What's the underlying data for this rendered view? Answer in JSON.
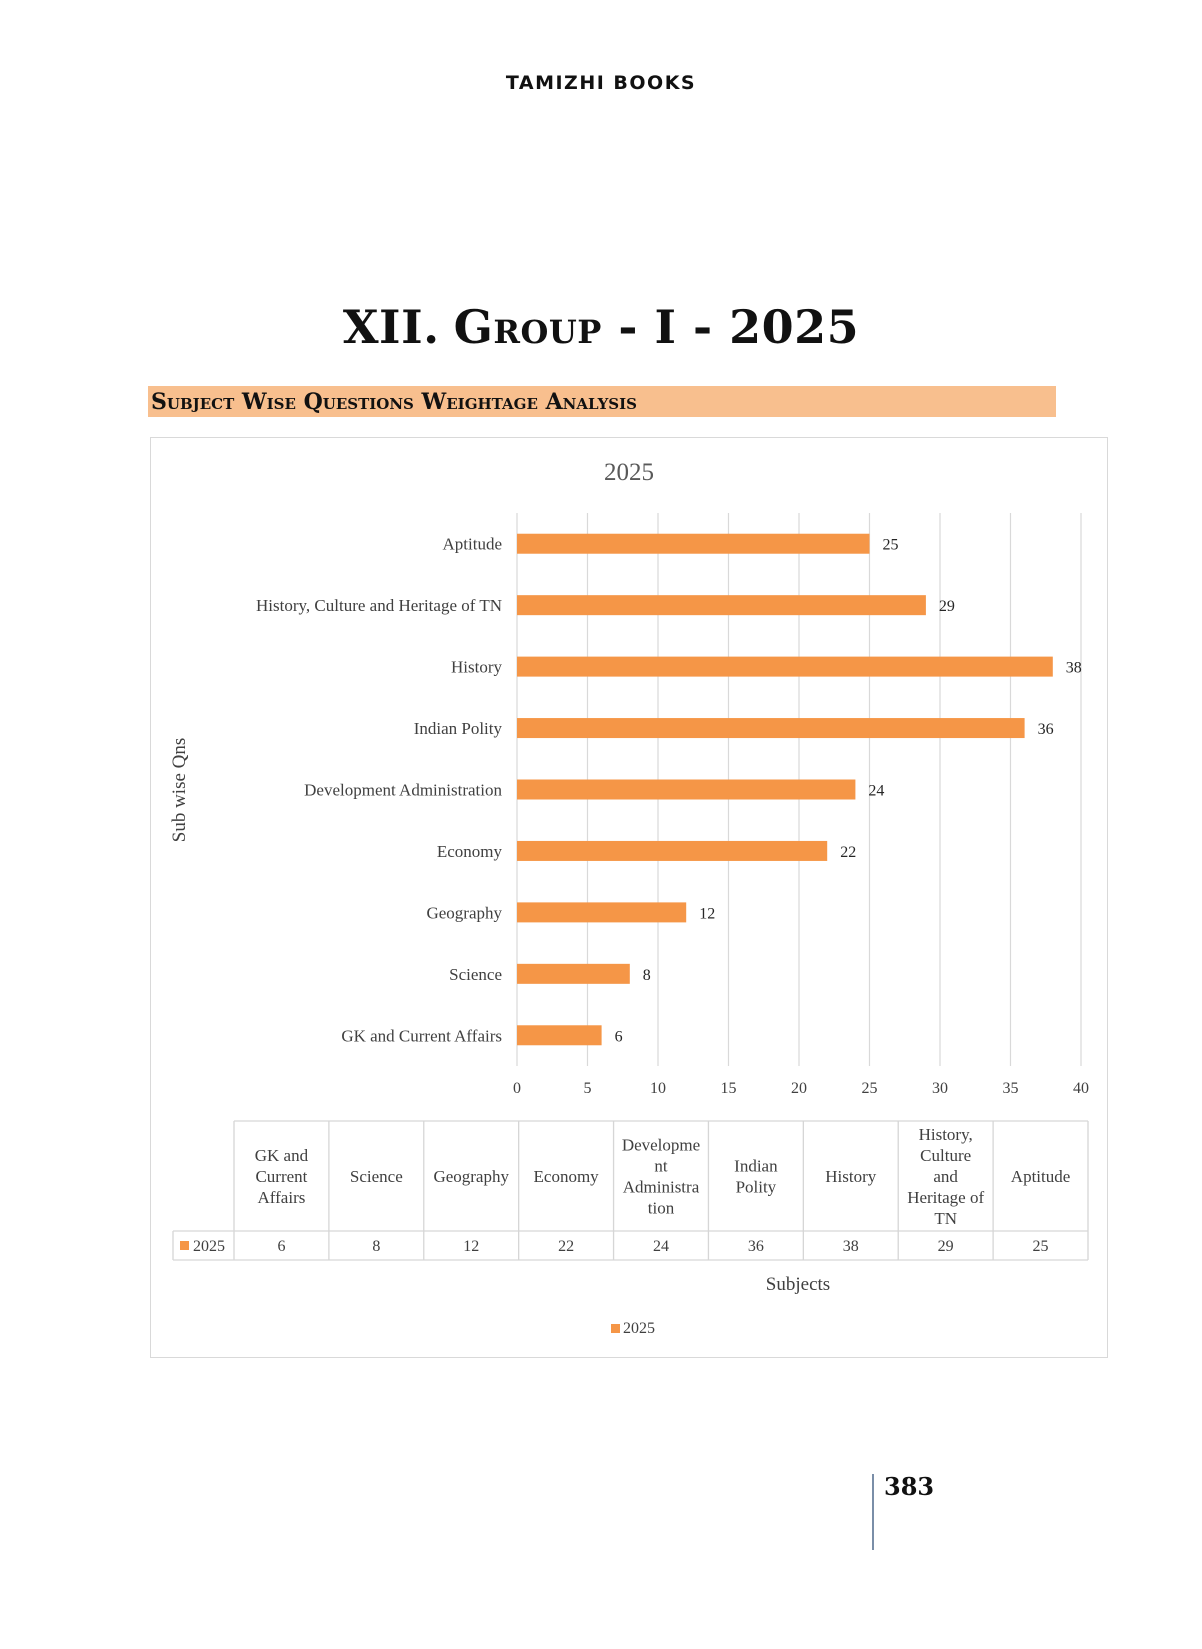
{
  "header": {
    "brand": "TAMIZHI BOOKS"
  },
  "page_title": {
    "numeral": "XII.",
    "text": "Group - I - 2025"
  },
  "section": {
    "title": "Subject Wise Questions Weightage Analysis"
  },
  "page_number": "383",
  "colors": {
    "bar": "#f59647",
    "band": "#f8bf8e",
    "grid": "#d9d9d9",
    "text": "#404040"
  },
  "chart_data": {
    "type": "bar",
    "orientation": "horizontal",
    "title": "2025",
    "ylabel": "Sub wise Qns",
    "xlabel": "Subjects",
    "xlim": [
      0,
      40
    ],
    "xticks": [
      "0",
      "5",
      "10",
      "15",
      "20",
      "25",
      "30",
      "35",
      "40"
    ],
    "grid": true,
    "legend": "bottom-center",
    "categories": [
      "GK and Current Affairs",
      "Science",
      "Geography",
      "Economy",
      "Development Administration",
      "Indian Polity",
      "History",
      "History, Culture and Heritage of TN",
      "Aptitude"
    ],
    "series": [
      {
        "name": "2025",
        "values": [
          6,
          8,
          12,
          22,
          24,
          36,
          38,
          29,
          25
        ]
      }
    ],
    "data_table": {
      "headers": [
        [
          "GK and",
          "Current",
          "Affairs"
        ],
        [
          "Science"
        ],
        [
          "Geography"
        ],
        [
          "Economy"
        ],
        [
          "Developme",
          "nt",
          "Administra",
          "tion"
        ],
        [
          "Indian",
          "Polity"
        ],
        [
          "History"
        ],
        [
          "History,",
          "Culture",
          "and",
          "Heritage of",
          "TN"
        ],
        [
          "Aptitude"
        ]
      ],
      "row_label": "2025"
    }
  }
}
